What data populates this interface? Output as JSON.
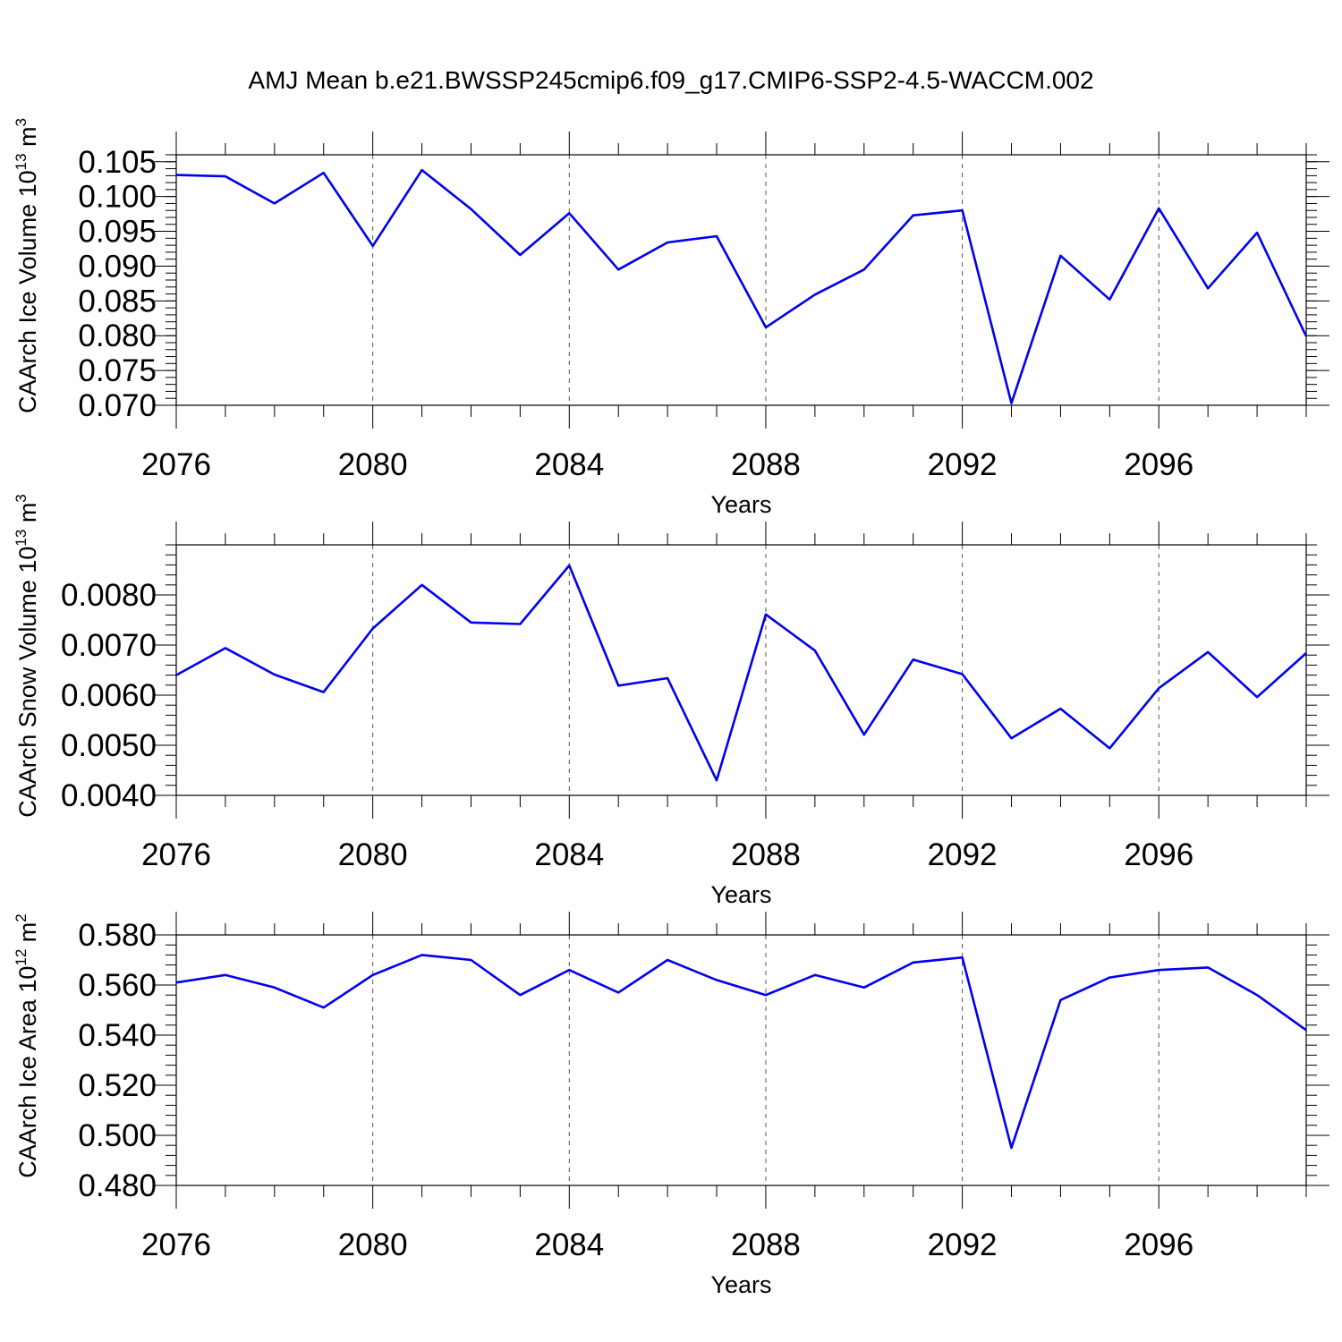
{
  "figure_title": "AMJ Mean b.e21.BWSSP245cmip6.f09_g17.CMIP6-SSP2-4.5-WACCM.002",
  "chart_data": [
    {
      "type": "line",
      "xlabel": "Years",
      "ylabel": "CAArch Ice Volume 10",
      "ylabel_exp": "13",
      "ylabel_unit": " m",
      "ylabel_unit_exp": "3",
      "xlim": [
        2076,
        2099
      ],
      "ylim": [
        0.07,
        0.106
      ],
      "x_ticks": [
        2076,
        2080,
        2084,
        2088,
        2092,
        2096
      ],
      "x_tick_labels": [
        "2076",
        "2080",
        "2084",
        "2088",
        "2092",
        "2096"
      ],
      "y_ticks": [
        0.07,
        0.075,
        0.08,
        0.085,
        0.09,
        0.095,
        0.1,
        0.105
      ],
      "y_tick_labels": [
        "0.070",
        "0.075",
        "0.080",
        "0.085",
        "0.090",
        "0.095",
        "0.100",
        "0.105"
      ],
      "y_minor_step": 0.001,
      "grid": "vertical-dashed",
      "series_color": "#0000ee",
      "x": [
        2076,
        2077,
        2078,
        2079,
        2080,
        2081,
        2082,
        2083,
        2084,
        2085,
        2086,
        2087,
        2088,
        2089,
        2090,
        2091,
        2092,
        2093,
        2094,
        2095,
        2096,
        2097,
        2098,
        2099
      ],
      "values": [
        0.1031,
        0.1029,
        0.099,
        0.1034,
        0.0929,
        0.1038,
        0.0982,
        0.0916,
        0.0976,
        0.0895,
        0.0934,
        0.0943,
        0.0812,
        0.0859,
        0.0895,
        0.0973,
        0.098,
        0.0703,
        0.0915,
        0.0852,
        0.0983,
        0.0868,
        0.0948,
        0.0799
      ]
    },
    {
      "type": "line",
      "xlabel": "Years",
      "ylabel": "CAArch Snow Volume 10",
      "ylabel_exp": "13",
      "ylabel_unit": " m",
      "ylabel_unit_exp": "3",
      "xlim": [
        2076,
        2099
      ],
      "ylim": [
        0.004,
        0.009
      ],
      "x_ticks": [
        2076,
        2080,
        2084,
        2088,
        2092,
        2096
      ],
      "x_tick_labels": [
        "2076",
        "2080",
        "2084",
        "2088",
        "2092",
        "2096"
      ],
      "y_ticks": [
        0.004,
        0.005,
        0.006,
        0.007,
        0.008
      ],
      "y_tick_labels": [
        "0.0040",
        "0.0050",
        "0.0060",
        "0.0070",
        "0.0080"
      ],
      "y_minor_step": 0.0002,
      "grid": "vertical-dashed",
      "series_color": "#0000ee",
      "x": [
        2076,
        2077,
        2078,
        2079,
        2080,
        2081,
        2082,
        2083,
        2084,
        2085,
        2086,
        2087,
        2088,
        2089,
        2090,
        2091,
        2092,
        2093,
        2094,
        2095,
        2096,
        2097,
        2098,
        2099
      ],
      "values": [
        0.0064,
        0.00694,
        0.00641,
        0.00606,
        0.00733,
        0.0082,
        0.00745,
        0.00742,
        0.00859,
        0.00619,
        0.00634,
        0.0043,
        0.00761,
        0.00689,
        0.00521,
        0.00671,
        0.00642,
        0.00514,
        0.00573,
        0.00494,
        0.00614,
        0.00686,
        0.00596,
        0.00684
      ]
    },
    {
      "type": "line",
      "xlabel": "Years",
      "ylabel": "CAArch Ice Area 10",
      "ylabel_exp": "12",
      "ylabel_unit": " m",
      "ylabel_unit_exp": "2",
      "xlim": [
        2076,
        2099
      ],
      "ylim": [
        0.48,
        0.58
      ],
      "x_ticks": [
        2076,
        2080,
        2084,
        2088,
        2092,
        2096
      ],
      "x_tick_labels": [
        "2076",
        "2080",
        "2084",
        "2088",
        "2092",
        "2096"
      ],
      "y_ticks": [
        0.48,
        0.5,
        0.52,
        0.54,
        0.56,
        0.58
      ],
      "y_tick_labels": [
        "0.480",
        "0.500",
        "0.520",
        "0.540",
        "0.560",
        "0.580"
      ],
      "y_minor_step": 0.004,
      "grid": "vertical-dashed",
      "series_color": "#0000ee",
      "x": [
        2076,
        2077,
        2078,
        2079,
        2080,
        2081,
        2082,
        2083,
        2084,
        2085,
        2086,
        2087,
        2088,
        2089,
        2090,
        2091,
        2092,
        2093,
        2094,
        2095,
        2096,
        2097,
        2098,
        2099
      ],
      "values": [
        0.561,
        0.564,
        0.559,
        0.551,
        0.564,
        0.572,
        0.57,
        0.556,
        0.566,
        0.557,
        0.57,
        0.562,
        0.556,
        0.564,
        0.559,
        0.569,
        0.571,
        0.495,
        0.554,
        0.563,
        0.566,
        0.567,
        0.556,
        0.542
      ]
    }
  ]
}
